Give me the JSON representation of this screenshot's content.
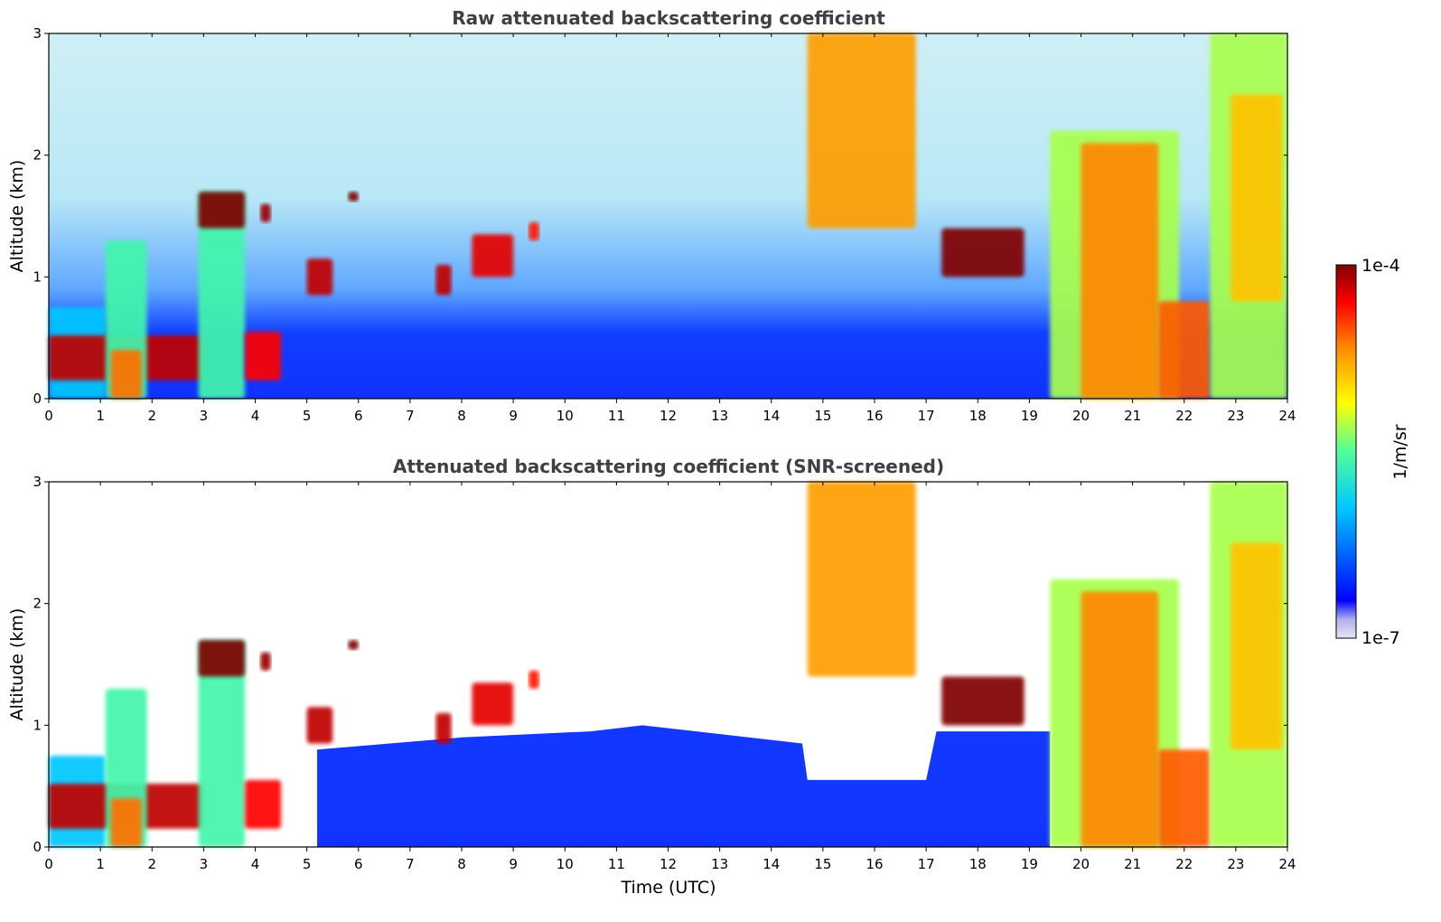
{
  "chart_data": [
    {
      "type": "heatmap",
      "title": "Raw attenuated backscattering coefficient",
      "xlabel": "",
      "ylabel": "Altitude (km)",
      "xlim": [
        0,
        24
      ],
      "ylim": [
        0,
        3
      ],
      "xticks": [
        0,
        1,
        2,
        3,
        4,
        5,
        6,
        7,
        8,
        9,
        10,
        11,
        12,
        13,
        14,
        15,
        16,
        17,
        18,
        19,
        20,
        21,
        22,
        23,
        24
      ],
      "yticks": [
        0,
        1,
        2,
        3
      ],
      "screened": false,
      "features": [
        {
          "t0": 0.0,
          "t1": 1.1,
          "z0": 0.0,
          "z1": 0.75,
          "level": 0.3
        },
        {
          "t0": 0.0,
          "t1": 3.0,
          "z0": 0.15,
          "z1": 0.52,
          "level": 0.95
        },
        {
          "t0": 1.1,
          "t1": 1.9,
          "z0": 0.0,
          "z1": 1.3,
          "level": 0.45
        },
        {
          "t0": 1.2,
          "t1": 1.8,
          "z0": 0.0,
          "z1": 0.4,
          "level": 0.8
        },
        {
          "t0": 2.9,
          "t1": 3.8,
          "z0": 0.0,
          "z1": 1.7,
          "level": 0.45
        },
        {
          "t0": 2.9,
          "t1": 3.8,
          "z0": 1.4,
          "z1": 1.7,
          "level": 1.0
        },
        {
          "t0": 3.8,
          "t1": 4.5,
          "z0": 0.15,
          "z1": 0.55,
          "level": 0.9
        },
        {
          "t0": 4.1,
          "t1": 4.3,
          "z0": 1.45,
          "z1": 1.6,
          "level": 0.98
        },
        {
          "t0": 5.0,
          "t1": 5.5,
          "z0": 0.85,
          "z1": 1.15,
          "level": 0.95
        },
        {
          "t0": 5.8,
          "t1": 6.0,
          "z0": 1.62,
          "z1": 1.7,
          "level": 1.0
        },
        {
          "t0": 7.5,
          "t1": 7.8,
          "z0": 0.85,
          "z1": 1.1,
          "level": 0.95
        },
        {
          "t0": 8.2,
          "t1": 9.0,
          "z0": 1.0,
          "z1": 1.35,
          "level": 0.92
        },
        {
          "t0": 9.3,
          "t1": 9.5,
          "z0": 1.3,
          "z1": 1.45,
          "level": 0.88
        },
        {
          "t0": 14.7,
          "t1": 16.8,
          "z0": 1.4,
          "z1": 3.0,
          "level": 0.75
        },
        {
          "t0": 17.3,
          "t1": 18.9,
          "z0": 1.0,
          "z1": 1.4,
          "level": 1.0
        },
        {
          "t0": 19.4,
          "t1": 21.9,
          "z0": 0.0,
          "z1": 2.2,
          "level": 0.55
        },
        {
          "t0": 20.0,
          "t1": 21.5,
          "z0": 0.0,
          "z1": 2.1,
          "level": 0.78
        },
        {
          "t0": 21.5,
          "t1": 22.5,
          "z0": 0.0,
          "z1": 0.8,
          "level": 0.82
        },
        {
          "t0": 22.5,
          "t1": 24.0,
          "z0": 0.0,
          "z1": 3.0,
          "level": 0.55
        },
        {
          "t0": 22.9,
          "t1": 23.9,
          "z0": 0.8,
          "z1": 2.5,
          "level": 0.7
        }
      ]
    },
    {
      "type": "heatmap",
      "title": "Attenuated backscattering coefficient (SNR-screened)",
      "xlabel": "Time (UTC)",
      "ylabel": "Altitude (km)",
      "xlim": [
        0,
        24
      ],
      "ylim": [
        0,
        3
      ],
      "xticks": [
        0,
        1,
        2,
        3,
        4,
        5,
        6,
        7,
        8,
        9,
        10,
        11,
        12,
        13,
        14,
        15,
        16,
        17,
        18,
        19,
        20,
        21,
        22,
        23,
        24
      ],
      "yticks": [
        0,
        1,
        2,
        3
      ],
      "screened": true,
      "features": [
        {
          "t0": 0.0,
          "t1": 1.1,
          "z0": 0.0,
          "z1": 0.75,
          "level": 0.3
        },
        {
          "t0": 0.0,
          "t1": 3.0,
          "z0": 0.15,
          "z1": 0.52,
          "level": 0.95
        },
        {
          "t0": 1.1,
          "t1": 1.9,
          "z0": 0.0,
          "z1": 1.3,
          "level": 0.45
        },
        {
          "t0": 1.2,
          "t1": 1.8,
          "z0": 0.0,
          "z1": 0.4,
          "level": 0.8
        },
        {
          "t0": 2.9,
          "t1": 3.8,
          "z0": 0.0,
          "z1": 1.7,
          "level": 0.45
        },
        {
          "t0": 2.9,
          "t1": 3.8,
          "z0": 1.4,
          "z1": 1.7,
          "level": 1.0
        },
        {
          "t0": 3.8,
          "t1": 4.5,
          "z0": 0.15,
          "z1": 0.55,
          "level": 0.9
        },
        {
          "t0": 4.1,
          "t1": 4.3,
          "z0": 1.45,
          "z1": 1.6,
          "level": 0.98
        },
        {
          "t0": 5.0,
          "t1": 5.5,
          "z0": 0.85,
          "z1": 1.15,
          "level": 0.95
        },
        {
          "t0": 5.8,
          "t1": 6.0,
          "z0": 1.62,
          "z1": 1.7,
          "level": 1.0
        },
        {
          "t0": 7.5,
          "t1": 7.8,
          "z0": 0.85,
          "z1": 1.1,
          "level": 0.95
        },
        {
          "t0": 8.2,
          "t1": 9.0,
          "z0": 1.0,
          "z1": 1.35,
          "level": 0.92
        },
        {
          "t0": 9.3,
          "t1": 9.5,
          "z0": 1.3,
          "z1": 1.45,
          "level": 0.88
        },
        {
          "t0": 14.7,
          "t1": 16.8,
          "z0": 1.4,
          "z1": 3.0,
          "level": 0.75
        },
        {
          "t0": 17.3,
          "t1": 18.9,
          "z0": 1.0,
          "z1": 1.4,
          "level": 1.0
        },
        {
          "t0": 19.4,
          "t1": 21.9,
          "z0": 0.0,
          "z1": 2.2,
          "level": 0.55
        },
        {
          "t0": 20.0,
          "t1": 21.5,
          "z0": 0.0,
          "z1": 2.1,
          "level": 0.78
        },
        {
          "t0": 21.5,
          "t1": 22.5,
          "z0": 0.0,
          "z1": 0.8,
          "level": 0.82
        },
        {
          "t0": 22.5,
          "t1": 24.0,
          "z0": 0.0,
          "z1": 3.0,
          "level": 0.55
        },
        {
          "t0": 22.9,
          "t1": 23.9,
          "z0": 0.8,
          "z1": 2.5,
          "level": 0.7
        }
      ]
    }
  ],
  "colorbar": {
    "label": "1/m/sr",
    "max_label": "1e-4",
    "min_label": "1e-7",
    "colormap": "jet",
    "scale": "log",
    "colors": [
      "#e6e6f5",
      "#0000ff",
      "#00c8ff",
      "#50ff9a",
      "#ffff00",
      "#ff8800",
      "#ff0000",
      "#800000"
    ]
  }
}
